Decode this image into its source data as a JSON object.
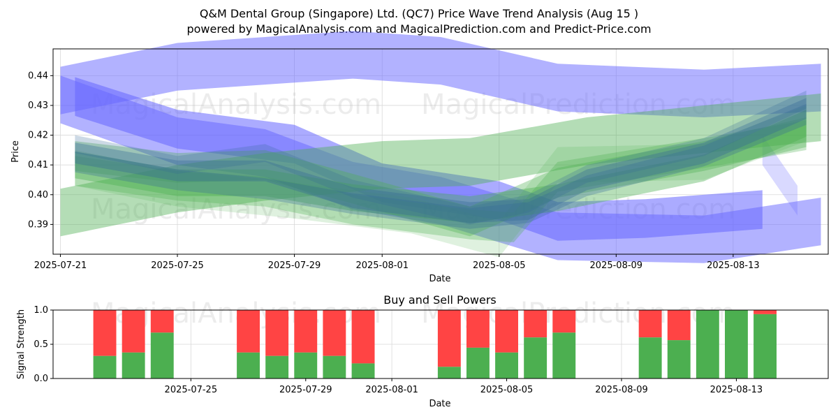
{
  "title_line1": "Q&M Dental Group (Singapore) Ltd. (QC7) Price Wave Trend Analysis (Aug 15 )",
  "title_line2": "powered by MagicalAnalysis.com and MagicalPrediction.com and Predict-Price.com",
  "watermarks": [
    "MagicalAnalysis.com",
    "MagicalPrediction.com"
  ],
  "colors": {
    "blue": "#6666ff",
    "green": "#4caf50",
    "dark_blue": "#336699",
    "buy": "#4caf50",
    "sell": "#ff4444"
  },
  "chart_data": [
    {
      "type": "area",
      "title": "",
      "xlabel": "Date",
      "ylabel": "Price",
      "x_ticks": [
        "2025-07-21",
        "2025-07-25",
        "2025-07-29",
        "2025-08-01",
        "2025-08-05",
        "2025-08-09",
        "2025-08-13"
      ],
      "y_ticks": [
        0.39,
        0.4,
        0.41,
        0.42,
        0.43,
        0.44
      ],
      "ylim": [
        0.38,
        0.449
      ],
      "xlim_days": [
        -0.25,
        26.25
      ],
      "x_start_date": "2025-07-21",
      "grid": true,
      "bands": [
        {
          "name": "blue upper wave",
          "color": "blue",
          "opacity": 0.5,
          "x": [
            0,
            4,
            7,
            10,
            13,
            17,
            22,
            26
          ],
          "center": [
            0.435,
            0.443,
            0.445,
            0.447,
            0.445,
            0.436,
            0.434,
            0.436
          ],
          "width": 0.016
        },
        {
          "name": "blue lower wave",
          "color": "blue",
          "opacity": 0.5,
          "x": [
            0,
            4,
            7,
            10,
            13,
            17,
            22,
            26
          ],
          "center": [
            0.432,
            0.418,
            0.414,
            0.403,
            0.398,
            0.386,
            0.385,
            0.391
          ],
          "width": 0.016
        },
        {
          "name": "blue short wave",
          "color": "blue",
          "opacity": 0.55,
          "x": [
            0.5,
            4,
            8,
            11,
            15,
            17,
            20,
            24
          ],
          "center": [
            0.433,
            0.422,
            0.417,
            0.404,
            0.398,
            0.391,
            0.392,
            0.395
          ],
          "width": 0.013
        },
        {
          "name": "blue tail wave",
          "color": "blue",
          "opacity": 0.25,
          "x": [
            24,
            25.2
          ],
          "center": [
            0.415,
            0.398
          ],
          "width": 0.01
        },
        {
          "name": "green rising wave",
          "color": "green",
          "opacity": 0.42,
          "x": [
            0,
            4,
            7,
            11,
            14,
            18,
            22,
            26
          ],
          "center": [
            0.394,
            0.402,
            0.406,
            0.41,
            0.411,
            0.418,
            0.422,
            0.426
          ],
          "width": 0.016
        },
        {
          "name": "green flat wave",
          "color": "green",
          "opacity": 0.4,
          "x": [
            0.5,
            4,
            7,
            10,
            14,
            17,
            22,
            25.5
          ],
          "center": [
            0.41,
            0.404,
            0.404,
            0.399,
            0.395,
            0.399,
            0.409,
            0.424
          ],
          "width": 0.009
        },
        {
          "name": "green mid wave",
          "color": "green",
          "opacity": 0.35,
          "x": [
            0.5,
            4,
            7,
            10,
            14,
            17,
            22,
            25.5
          ],
          "center": [
            0.413,
            0.409,
            0.41,
            0.402,
            0.391,
            0.404,
            0.413,
            0.421
          ],
          "width": 0.01
        },
        {
          "name": "green low wave",
          "color": "green",
          "opacity": 0.3,
          "x": [
            0.5,
            4,
            7,
            10,
            14,
            15.5,
            17,
            22,
            25.5
          ],
          "center": [
            0.408,
            0.403,
            0.401,
            0.395,
            0.39,
            0.389,
            0.406,
            0.414,
            0.42
          ],
          "width": 0.01
        },
        {
          "name": "green faint wave",
          "color": "green",
          "opacity": 0.18,
          "x": [
            0.5,
            4,
            8,
            12,
            15,
            17,
            22,
            25.5
          ],
          "center": [
            0.409,
            0.402,
            0.398,
            0.393,
            0.385,
            0.41,
            0.411,
            0.424
          ],
          "width": 0.012
        },
        {
          "name": "dark blue wave 1",
          "color": "dark_blue",
          "opacity": 0.35,
          "x": [
            0.5,
            4,
            7,
            10,
            14,
            16,
            18,
            22,
            25.5
          ],
          "center": [
            0.414,
            0.408,
            0.408,
            0.399,
            0.394,
            0.395,
            0.405,
            0.414,
            0.429
          ],
          "width": 0.007
        },
        {
          "name": "dark blue wave 2",
          "color": "dark_blue",
          "opacity": 0.3,
          "x": [
            0.5,
            4,
            7,
            10,
            14,
            16,
            18,
            22,
            25.5
          ],
          "center": [
            0.411,
            0.405,
            0.402,
            0.397,
            0.392,
            0.394,
            0.403,
            0.413,
            0.427
          ],
          "width": 0.007
        },
        {
          "name": "dark blue wave 3",
          "color": "dark_blue",
          "opacity": 0.25,
          "x": [
            0.5,
            4,
            7,
            10,
            14,
            16,
            18,
            22,
            25.5
          ],
          "center": [
            0.417,
            0.41,
            0.414,
            0.402,
            0.393,
            0.397,
            0.407,
            0.416,
            0.432
          ],
          "width": 0.006
        }
      ]
    },
    {
      "type": "bar",
      "title": "Buy and Sell Powers",
      "xlabel": "Date",
      "ylabel": "Signal Strength",
      "ylim": [
        0,
        1
      ],
      "y_ticks": [
        "0.0",
        "0.5",
        "1.0"
      ],
      "x_ticks": [
        "2025-07-25",
        "2025-07-29",
        "2025-08-01",
        "2025-08-05",
        "2025-08-09",
        "2025-08-13"
      ],
      "x_tick_days": [
        4,
        8,
        11,
        15,
        19,
        23
      ],
      "xlim_days": [
        -0.8,
        26.2
      ],
      "grid": true,
      "series": [
        {
          "name": "Buy",
          "color": "buy"
        },
        {
          "name": "Sell",
          "color": "sell"
        }
      ],
      "days": [
        1,
        2,
        3,
        6,
        7,
        8,
        9,
        10,
        13,
        14,
        15,
        16,
        17,
        20,
        21,
        22,
        23,
        24
      ],
      "buy": [
        0.33,
        0.38,
        0.67,
        0.38,
        0.33,
        0.38,
        0.33,
        0.22,
        0.17,
        0.45,
        0.38,
        0.6,
        0.67,
        0.6,
        0.56,
        1.0,
        1.0,
        0.94
      ]
    }
  ]
}
